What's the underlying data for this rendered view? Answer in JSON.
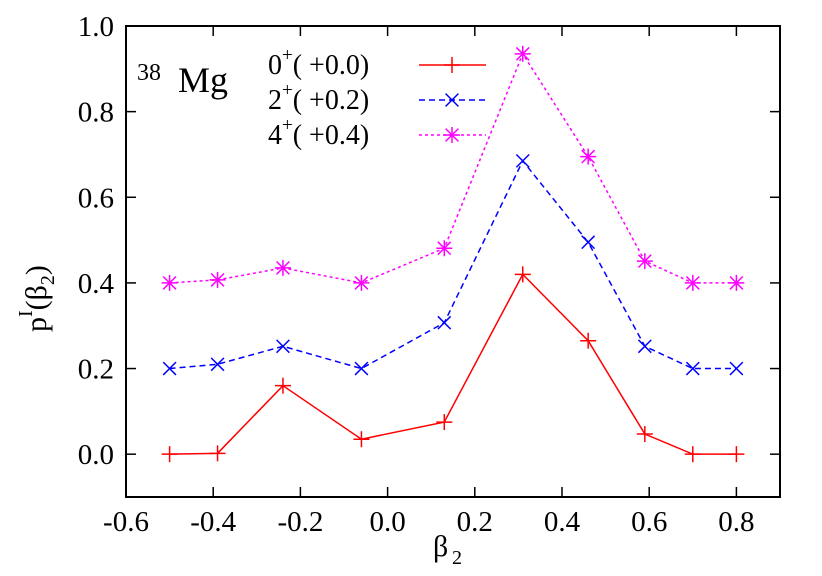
{
  "chart_data": {
    "type": "line",
    "title": "",
    "annotation": {
      "mass": "38",
      "element": "Mg"
    },
    "xlabel": {
      "base": "β",
      "sub": "2"
    },
    "ylabel": {
      "base": "p",
      "sup": "I",
      "open": "(β",
      "sub": "2",
      "close": ")"
    },
    "xlim": [
      -0.6,
      0.9
    ],
    "ylim": [
      -0.1,
      1.0
    ],
    "xticks": [
      -0.6,
      -0.4,
      -0.2,
      0.0,
      0.2,
      0.4,
      0.6,
      0.8
    ],
    "xtick_labels": [
      "-0.6",
      "-0.4",
      "-0.2",
      "0.0",
      "0.2",
      "0.4",
      "0.6",
      "0.8"
    ],
    "yticks": [
      0.0,
      0.2,
      0.4,
      0.6,
      0.8,
      1.0
    ],
    "ytick_labels": [
      "0.0",
      "0.2",
      "0.4",
      "0.6",
      "0.8",
      "1.0"
    ],
    "grid": false,
    "legend_position": "top-left",
    "x": [
      -0.5,
      -0.39,
      -0.24,
      -0.06,
      0.13,
      0.31,
      0.46,
      0.59,
      0.7,
      0.8
    ],
    "series": [
      {
        "name": "0+( +0.0)",
        "spin": "0",
        "offset": "( +0.0)",
        "color": "#ff0000",
        "dash": "solid",
        "marker": "plus",
        "values": [
          0.0,
          0.002,
          0.16,
          0.035,
          0.075,
          0.42,
          0.265,
          0.047,
          0.0,
          0.0
        ]
      },
      {
        "name": "2+( +0.2)",
        "spin": "2",
        "offset": "( +0.2)",
        "color": "#0000ff",
        "dash": "dashed",
        "marker": "cross",
        "values": [
          0.2,
          0.21,
          0.252,
          0.2,
          0.307,
          0.685,
          0.495,
          0.252,
          0.2,
          0.2
        ]
      },
      {
        "name": "4+( +0.4)",
        "spin": "4",
        "offset": "( +0.4)",
        "color": "#ff00ff",
        "dash": "dotted",
        "marker": "star",
        "values": [
          0.4,
          0.407,
          0.435,
          0.4,
          0.481,
          0.935,
          0.695,
          0.451,
          0.4,
          0.4
        ]
      }
    ]
  }
}
